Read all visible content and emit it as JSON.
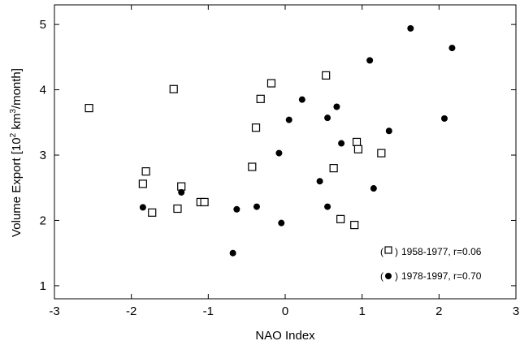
{
  "chart_data": {
    "type": "scatter",
    "xlabel": "NAO Index",
    "ylabel_parts": {
      "a": "Volume Export [10",
      "b": "2",
      "c": " km",
      "d": "3",
      "e": "/month]"
    },
    "xlim": [
      -3,
      3
    ],
    "ylim": [
      0.8,
      5.3
    ],
    "xticks": [
      -3,
      -2,
      -1,
      0,
      1,
      2,
      3
    ],
    "yticks": [
      1,
      2,
      3,
      4,
      5
    ],
    "grid": false,
    "legend_position": "bottom-right",
    "series": [
      {
        "name": "1958-1977, r=0.06",
        "marker": "open-square",
        "points": [
          [
            -2.55,
            3.72
          ],
          [
            -1.45,
            4.01
          ],
          [
            -1.85,
            2.56
          ],
          [
            -1.81,
            2.75
          ],
          [
            -1.73,
            2.12
          ],
          [
            -1.4,
            2.18
          ],
          [
            -1.35,
            2.52
          ],
          [
            -1.1,
            2.28
          ],
          [
            -1.05,
            2.28
          ],
          [
            -0.43,
            2.82
          ],
          [
            -0.38,
            3.42
          ],
          [
            -0.32,
            3.86
          ],
          [
            -0.18,
            4.1
          ],
          [
            0.53,
            4.22
          ],
          [
            0.63,
            2.8
          ],
          [
            0.72,
            2.02
          ],
          [
            0.9,
            1.93
          ],
          [
            0.93,
            3.2
          ],
          [
            0.95,
            3.09
          ],
          [
            1.25,
            3.03
          ]
        ]
      },
      {
        "name": "1978-1997, r=0.70",
        "marker": "filled-circle",
        "points": [
          [
            -1.85,
            2.2
          ],
          [
            -1.35,
            2.43
          ],
          [
            -0.63,
            2.17
          ],
          [
            -0.68,
            1.5
          ],
          [
            -0.37,
            2.21
          ],
          [
            -0.08,
            3.03
          ],
          [
            -0.05,
            1.96
          ],
          [
            0.05,
            3.54
          ],
          [
            0.22,
            3.85
          ],
          [
            0.45,
            2.6
          ],
          [
            0.55,
            2.21
          ],
          [
            0.55,
            3.57
          ],
          [
            0.67,
            3.74
          ],
          [
            0.73,
            3.18
          ],
          [
            1.1,
            4.45
          ],
          [
            1.15,
            2.49
          ],
          [
            1.35,
            3.37
          ],
          [
            1.63,
            4.94
          ],
          [
            2.07,
            3.56
          ],
          [
            2.17,
            4.64
          ]
        ]
      }
    ]
  }
}
